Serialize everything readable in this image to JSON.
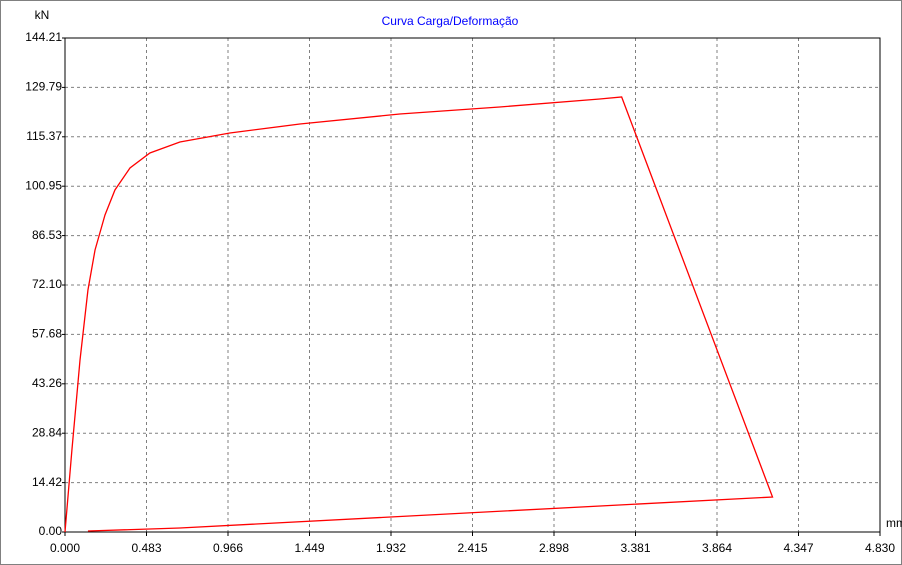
{
  "chart_data": {
    "type": "line",
    "title": "Curva Carga/Deformação",
    "ylabel": "kN",
    "xlabel": "mm",
    "x": [
      0,
      0.041,
      0.089,
      0.136,
      0.178,
      0.237,
      0.296,
      0.385,
      0.503,
      0.681,
      0.977,
      1.392,
      1.984,
      2.576,
      3.169,
      3.299,
      4.193,
      0.681,
      0.136
    ],
    "series": [
      {
        "color": "#ff0000",
        "values": [
          0,
          23.94,
          50.21,
          70.64,
          82.32,
          92.54,
          99.84,
          106.26,
          110.64,
          113.85,
          116.48,
          119.1,
          122.02,
          124.07,
          126.4,
          126.99,
          10.22,
          1.17,
          0.29
        ]
      }
    ],
    "xlim": [
      0,
      4.83
    ],
    "ylim": [
      0,
      144.21
    ],
    "xticks": [
      {
        "value": 0,
        "label": "0.000"
      },
      0.483,
      0.966,
      1.449,
      1.932,
      {
        "value": 2.415,
        "label": "2.415"
      },
      {
        "value": 2.898,
        "label": "2.898"
      },
      {
        "value": 3.381,
        "label": "3.381"
      },
      {
        "value": 3.864,
        "label": "3.864"
      },
      {
        "value": 4.347,
        "label": "4.347"
      },
      {
        "value": 4.83,
        "label": "4.830"
      }
    ],
    "yticks": [
      {
        "value": 0,
        "label": "0.00"
      },
      14.42,
      {
        "value": 28.84,
        "label": "28.84"
      },
      {
        "value": 43.26,
        "label": "43.26"
      },
      {
        "value": 57.68,
        "label": "57.68"
      },
      {
        "value": 72.1,
        "label": "72.10"
      },
      86.53,
      100.95,
      115.37,
      129.79,
      144.21
    ],
    "grid": true
  }
}
